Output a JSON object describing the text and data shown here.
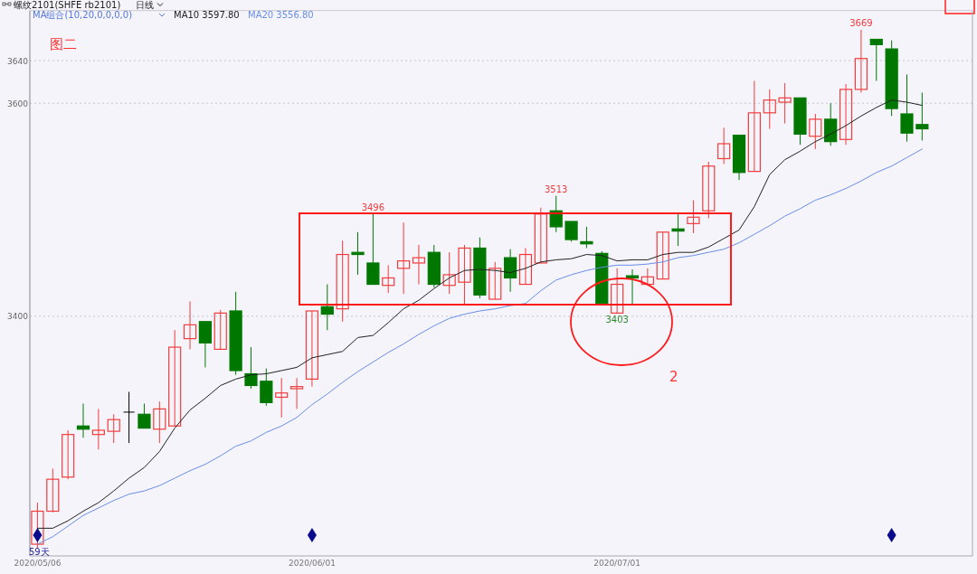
{
  "chart_data": {
    "type": "candlestick",
    "title": "螺纹2101(SHFE rb2101)",
    "subtitle": "日线",
    "legend_title": "MA组合(10,20,0,0,0,0)",
    "legend": "top left",
    "grid": "y",
    "categories": [
      "2020/05/06",
      null,
      null,
      null,
      null,
      null,
      null,
      null,
      null,
      null,
      null,
      null,
      null,
      null,
      null,
      null,
      null,
      null,
      "2020/06/01",
      null,
      null,
      null,
      null,
      null,
      null,
      null,
      null,
      null,
      null,
      null,
      null,
      null,
      null,
      null,
      null,
      null,
      null,
      null,
      "2020/07/01",
      null,
      null,
      null,
      null,
      null,
      null,
      null,
      null,
      null,
      null,
      null,
      null,
      null,
      null,
      null,
      null,
      null,
      null,
      null,
      null
    ],
    "ylim": [
      3175,
      3687
    ],
    "yticks": [
      3400,
      3600,
      3640
    ],
    "ohlc": [
      [
        3186,
        3225,
        3182,
        3217
      ],
      [
        3217,
        3257,
        3216,
        3247
      ],
      [
        3249,
        3293,
        3247,
        3289
      ],
      [
        3297,
        3318,
        3286,
        3294
      ],
      [
        3289,
        3313,
        3275,
        3293
      ],
      [
        3292,
        3308,
        3281,
        3303
      ],
      [
        3310,
        3329,
        3281,
        3310
      ],
      [
        3308,
        3318,
        3295,
        3295
      ],
      [
        3294,
        3320,
        3281,
        3313
      ],
      [
        3297,
        3387,
        3297,
        3371
      ],
      [
        3379,
        3414,
        3369,
        3392
      ],
      [
        3395,
        3395,
        3352,
        3375
      ],
      [
        3369,
        3406,
        3369,
        3403
      ],
      [
        3405,
        3423,
        3345,
        3349
      ],
      [
        3346,
        3371,
        3332,
        3335
      ],
      [
        3339,
        3351,
        3316,
        3319
      ],
      [
        3324,
        3342,
        3305,
        3328
      ],
      [
        3332,
        3342,
        3313,
        3334
      ],
      [
        3341,
        3405,
        3334,
        3405
      ],
      [
        3409,
        3430,
        3387,
        3402
      ],
      [
        3407,
        3471,
        3395,
        3458
      ],
      [
        3460,
        3479,
        3439,
        3458
      ],
      [
        3450,
        3496,
        3430,
        3430
      ],
      [
        3429,
        3448,
        3422,
        3436
      ],
      [
        3445,
        3488,
        3421,
        3452
      ],
      [
        3450,
        3467,
        3430,
        3455
      ],
      [
        3460,
        3467,
        3427,
        3430
      ],
      [
        3429,
        3460,
        3421,
        3439
      ],
      [
        3432,
        3467,
        3411,
        3464
      ],
      [
        3464,
        3474,
        3417,
        3420
      ],
      [
        3416,
        3451,
        3416,
        3445
      ],
      [
        3455,
        3463,
        3423,
        3436
      ],
      [
        3430,
        3464,
        3430,
        3458
      ],
      [
        3450,
        3502,
        3450,
        3496
      ],
      [
        3499,
        3513,
        3479,
        3484
      ],
      [
        3489,
        3489,
        3470,
        3472
      ],
      [
        3470,
        3484,
        3464,
        3468
      ],
      [
        3459,
        3461,
        3412,
        3412
      ],
      [
        3403,
        3445,
        3403,
        3430
      ],
      [
        3438,
        3444,
        3411,
        3436
      ],
      [
        3430,
        3445,
        3430,
        3437
      ],
      [
        3435,
        3479,
        3435,
        3479
      ],
      [
        3482,
        3496,
        3466,
        3480
      ],
      [
        3487,
        3509,
        3478,
        3493
      ],
      [
        3499,
        3545,
        3492,
        3541
      ],
      [
        3548,
        3577,
        3543,
        3562
      ],
      [
        3570,
        3570,
        3528,
        3535
      ],
      [
        3536,
        3621,
        3536,
        3591
      ],
      [
        3591,
        3613,
        3576,
        3603
      ],
      [
        3601,
        3619,
        3581,
        3605
      ],
      [
        3605,
        3605,
        3561,
        3571
      ],
      [
        3569,
        3590,
        3557,
        3585
      ],
      [
        3585,
        3600,
        3560,
        3564
      ],
      [
        3566,
        3618,
        3561,
        3613
      ],
      [
        3613,
        3669,
        3610,
        3642
      ],
      [
        3660,
        3660,
        3621,
        3655
      ],
      [
        3651,
        3659,
        3588,
        3595
      ],
      [
        3590,
        3627,
        3564,
        3572
      ],
      [
        3580,
        3610,
        3565,
        3576
      ]
    ],
    "colors": [
      "#f23c3c",
      "#f23c3c",
      "#f23c3c",
      "#007800",
      "#f23c3c",
      "#f23c3c",
      "#000000",
      "#007800",
      "#f23c3c",
      "#f23c3c",
      "#f23c3c",
      "#007800",
      "#f23c3c",
      "#007800",
      "#007800",
      "#007800",
      "#f23c3c",
      "#f23c3c",
      "#f23c3c",
      "#007800",
      "#f23c3c",
      "#007800",
      "#007800",
      "#f23c3c",
      "#f23c3c",
      "#f23c3c",
      "#007800",
      "#f23c3c",
      "#f23c3c",
      "#007800",
      "#f23c3c",
      "#007800",
      "#f23c3c",
      "#f23c3c",
      "#007800",
      "#007800",
      "#007800",
      "#007800",
      "#f23c3c",
      "#007800",
      "#f23c3c",
      "#f23c3c",
      "#007800",
      "#f23c3c",
      "#f23c3c",
      "#f23c3c",
      "#007800",
      "#f23c3c",
      "#f23c3c",
      "#f23c3c",
      "#007800",
      "#f23c3c",
      "#007800",
      "#f23c3c",
      "#f23c3c",
      "#007800",
      "#007800",
      "#007800",
      "#007800"
    ],
    "series": [
      {
        "type": "line",
        "name": "MA10 3597.80",
        "color": "#222222",
        "values": [
          3201,
          3201,
          3208,
          3217,
          3225,
          3236,
          3248,
          3258,
          3273,
          3295,
          3312,
          3323,
          3335,
          3341,
          3345,
          3346,
          3349,
          3352,
          3361,
          3364,
          3367,
          3380,
          3382,
          3394,
          3407,
          3415,
          3426,
          3436,
          3443,
          3444,
          3443,
          3441,
          3445,
          3451,
          3453,
          3454,
          3458,
          3457,
          3452,
          3453,
          3453,
          3458,
          3460,
          3460,
          3465,
          3473,
          3481,
          3503,
          3533,
          3547,
          3555,
          3564,
          3571,
          3579,
          3588,
          3596,
          3603,
          3601,
          3598
        ]
      },
      {
        "type": "line",
        "name": "MA20 3556.80",
        "color": "#6a8ee8",
        "values": [
          3186,
          3193,
          3203,
          3213,
          3220,
          3227,
          3233,
          3236,
          3241,
          3248,
          3255,
          3261,
          3269,
          3278,
          3283,
          3291,
          3297,
          3305,
          3317,
          3327,
          3338,
          3348,
          3357,
          3366,
          3374,
          3383,
          3391,
          3398,
          3402,
          3405,
          3407,
          3410,
          3412,
          3424,
          3434,
          3439,
          3443,
          3446,
          3448,
          3448,
          3449,
          3451,
          3455,
          3457,
          3460,
          3463,
          3469,
          3477,
          3485,
          3494,
          3501,
          3509,
          3514,
          3520,
          3527,
          3535,
          3541,
          3549,
          3557
        ]
      }
    ],
    "annotations": [
      "图二",
      "2",
      "59天",
      {
        "text": "3496",
        "y": 3496
      },
      {
        "text": "3513",
        "y": 3513
      },
      {
        "text": "3403",
        "y": 3403
      },
      {
        "text": "3669",
        "y": 3669
      }
    ]
  }
}
